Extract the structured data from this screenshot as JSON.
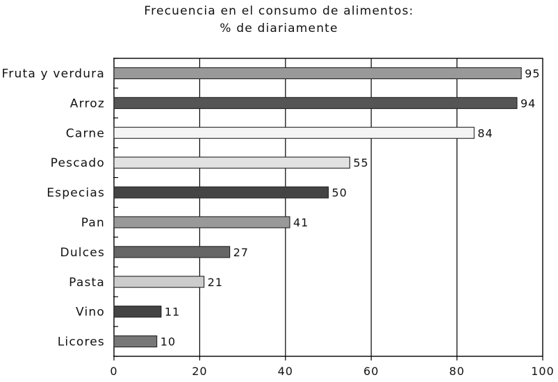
{
  "chart_data": {
    "type": "bar",
    "orientation": "horizontal",
    "title": "Frecuencia en el consumo de alimentos:",
    "subtitle": "% de diariamente",
    "categories": [
      "Fruta y verdura",
      "Arroz",
      "Carne",
      "Pescado",
      "Especias",
      "Pan",
      "Dulces",
      "Pasta",
      "Vino",
      "Licores"
    ],
    "values": [
      95,
      94,
      84,
      55,
      50,
      41,
      27,
      21,
      11,
      10
    ],
    "bar_colors": [
      "#999999",
      "#555555",
      "#f4f4f4",
      "#e2e2e2",
      "#444444",
      "#999999",
      "#666666",
      "#cccccc",
      "#444444",
      "#777777"
    ],
    "xlim": [
      0,
      100
    ],
    "xticks": [
      0,
      20,
      40,
      60,
      80,
      100
    ],
    "grid": true,
    "xlabel": "",
    "ylabel": ""
  }
}
